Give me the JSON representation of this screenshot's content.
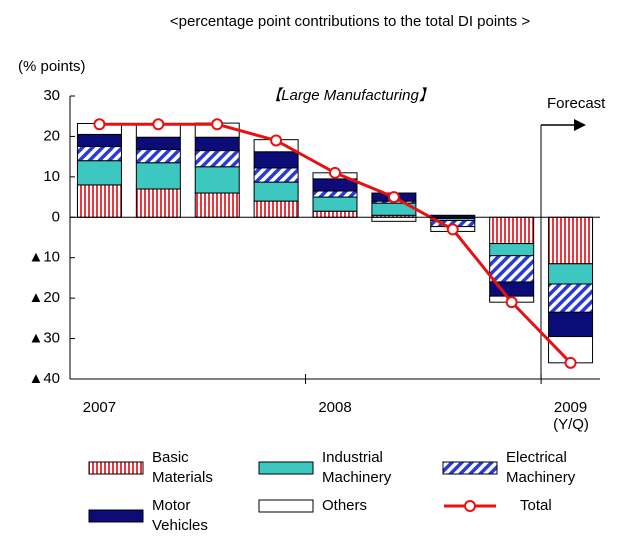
{
  "chart_data": {
    "type": "stacked-bar-line",
    "subtitle": "<percentage point contributions to the total DI points >",
    "title": "【Large Manufacturing】",
    "y_label": "(% points)",
    "x_unit_label": "(Y/Q)",
    "annotation": "Forecast",
    "categories": [
      "2007",
      null,
      null,
      null,
      "2008",
      null,
      null,
      null,
      "2009"
    ],
    "ylim": [
      -40,
      30
    ],
    "yticks": [
      30,
      20,
      10,
      0,
      {
        "value": -10,
        "label": "▲10"
      },
      {
        "value": -20,
        "label": "▲20"
      },
      {
        "value": -30,
        "label": "▲30"
      },
      {
        "value": -40,
        "label": "▲40"
      }
    ],
    "series": [
      {
        "name": "Basic Materials",
        "color": "#e8383d",
        "pattern": "vertical",
        "values": [
          8,
          7,
          6,
          4,
          1.5,
          0.5,
          -0.3,
          -6.5,
          -11.5
        ]
      },
      {
        "name": "Industrial Machinery",
        "color": "#3cc8c0",
        "pattern": "solid",
        "values": [
          6,
          6.5,
          6.5,
          4.7,
          3.5,
          3,
          -0.5,
          -3,
          -5
        ]
      },
      {
        "name": "Electrical Machinery",
        "color": "#2a3ad8",
        "pattern": "diagonal",
        "values": [
          3.5,
          3.3,
          4,
          3.5,
          1.5,
          0.5,
          -1.5,
          -6.5,
          -7
        ]
      },
      {
        "name": "Motor Vehicles",
        "color": "#0c0c78",
        "pattern": "solid",
        "values": [
          3,
          3,
          3.3,
          4,
          3,
          2,
          0.5,
          -3.5,
          -6
        ]
      },
      {
        "name": "Others",
        "color": "#ffffff",
        "pattern": "solid",
        "values": [
          2.7,
          3.4,
          3.5,
          3,
          1.5,
          -1,
          -1.2,
          -1.5,
          -6.5
        ]
      },
      {
        "name": "Total",
        "color": "#e81010",
        "type": "line",
        "values": [
          23,
          23,
          23,
          19,
          11,
          5,
          -3,
          -21,
          -36
        ]
      }
    ]
  }
}
